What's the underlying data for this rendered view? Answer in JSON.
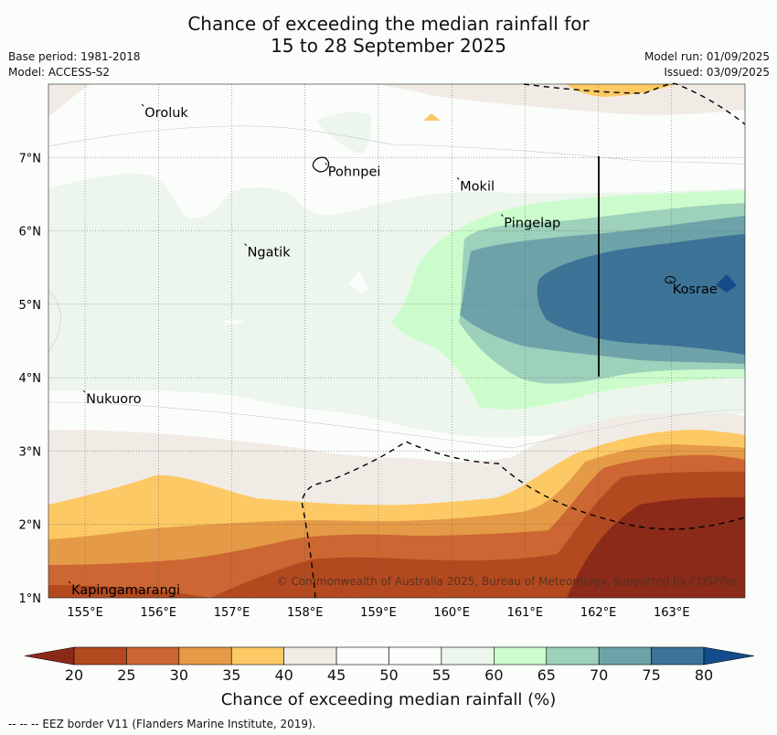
{
  "title_line1": "Chance of exceeding the median rainfall for",
  "title_line2": "15 to 28 September 2025",
  "meta_left": [
    "Base period: 1981-2018",
    "Model: ACCESS-S2"
  ],
  "meta_right": [
    "Model run: 01/09/2025",
    "Issued: 03/09/2025"
  ],
  "map": {
    "lon_range": [
      154.5,
      164.0
    ],
    "lat_range": [
      1.0,
      8.0
    ],
    "lon_ticks": [
      "155°E",
      "156°E",
      "157°E",
      "158°E",
      "159°E",
      "160°E",
      "161°E",
      "162°E",
      "163°E"
    ],
    "lat_ticks": [
      "1°N",
      "2°N",
      "3°N",
      "4°N",
      "5°N",
      "6°N",
      "7°N"
    ],
    "grid": true,
    "places": [
      {
        "name": "Oroluk",
        "lon": 155.8,
        "lat": 7.7
      },
      {
        "name": "Pohnpei",
        "lon": 158.3,
        "lat": 6.9
      },
      {
        "name": "Mokil",
        "lon": 160.1,
        "lat": 6.7
      },
      {
        "name": "Pingelap",
        "lon": 160.7,
        "lat": 6.2
      },
      {
        "name": "Ngatik",
        "lon": 157.2,
        "lat": 5.8
      },
      {
        "name": "Kosrae",
        "lon": 163.0,
        "lat": 5.3
      },
      {
        "name": "Nukuoro",
        "lon": 155.0,
        "lat": 3.8
      },
      {
        "name": "Kapingamarangi",
        "lon": 154.8,
        "lat": 1.2
      }
    ],
    "copyright": "© Commonwealth of Australia 2025, Bureau of Meteorology, supported by COSPPac"
  },
  "colorbar": {
    "ticks": [
      "20",
      "25",
      "30",
      "35",
      "40",
      "45",
      "50",
      "55",
      "60",
      "65",
      "70",
      "75",
      "80"
    ],
    "colors": [
      "#8c2a1a",
      "#b3491f",
      "#cc6633",
      "#e49a46",
      "#fdc965",
      "#f1ebe6",
      "#fbfdfb",
      "#fbfdfb",
      "#ecf6ec",
      "#ccfccc",
      "#9dd1bb",
      "#6da3a8",
      "#3c7397",
      "#134c8a"
    ],
    "label": "Chance of exceeding median rainfall (%)"
  },
  "footer": "--  --  -- EEZ border V11 (Flanders Marine Institute, 2019)."
}
